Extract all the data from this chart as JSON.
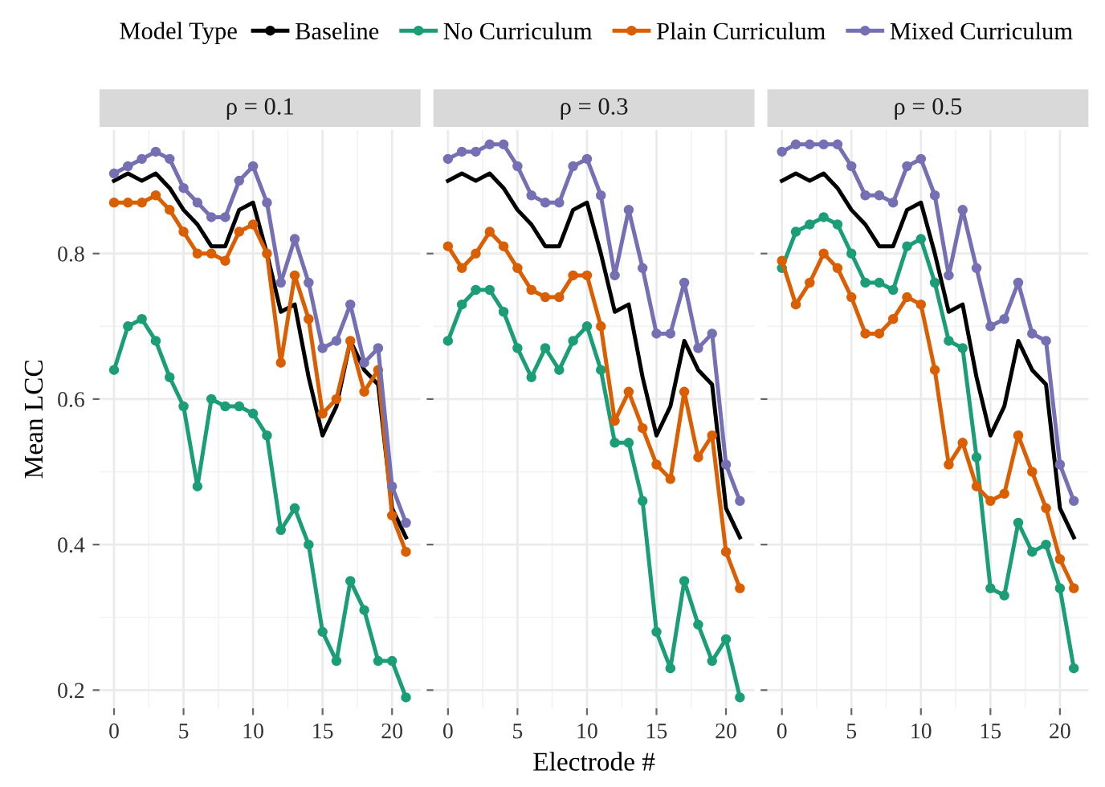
{
  "chart_data": [
    {
      "type": "line",
      "title": "ρ = 0.1",
      "ylabel": "Mean LCC",
      "legend_title": "Model Type",
      "legend": "top",
      "grid": true,
      "marker": "circle",
      "line_style": "solid",
      "tick_labels": "xy",
      "x": [
        0,
        1,
        2,
        3,
        4,
        5,
        6,
        7,
        8,
        9,
        10,
        11,
        12,
        13,
        14,
        15,
        16,
        17,
        18,
        19,
        20,
        21
      ],
      "xlim": [
        -1.05,
        22.05
      ],
      "xticks": [
        0,
        5,
        10,
        15,
        20
      ],
      "ylim": [
        0.175,
        0.97
      ],
      "yticks": [
        0.2,
        0.4,
        0.6,
        0.8
      ],
      "series": [
        {
          "name": "Baseline",
          "color": "#000000",
          "marker": "none",
          "values": [
            0.9,
            0.91,
            0.9,
            0.91,
            0.89,
            0.86,
            0.84,
            0.81,
            0.81,
            0.86,
            0.87,
            0.8,
            0.72,
            0.73,
            0.63,
            0.55,
            0.59,
            0.68,
            0.64,
            0.62,
            0.45,
            0.41
          ]
        },
        {
          "name": "No Curriculum",
          "color": "#1b9e77",
          "values": [
            0.64,
            0.7,
            0.71,
            0.68,
            0.63,
            0.59,
            0.48,
            0.6,
            0.59,
            0.59,
            0.58,
            0.55,
            0.42,
            0.45,
            0.4,
            0.28,
            0.24,
            0.35,
            0.31,
            0.24,
            0.24,
            0.19
          ]
        },
        {
          "name": "Plain Curriculum",
          "color": "#d95f02",
          "values": [
            0.87,
            0.87,
            0.87,
            0.88,
            0.86,
            0.83,
            0.8,
            0.8,
            0.79,
            0.83,
            0.84,
            0.8,
            0.65,
            0.77,
            0.71,
            0.58,
            0.6,
            0.68,
            0.61,
            0.64,
            0.44,
            0.39
          ]
        },
        {
          "name": "Mixed Curriculum",
          "color": "#7570b3",
          "values": [
            0.91,
            0.92,
            0.93,
            0.94,
            0.93,
            0.89,
            0.87,
            0.85,
            0.85,
            0.9,
            0.92,
            0.87,
            0.76,
            0.82,
            0.76,
            0.67,
            0.68,
            0.73,
            0.65,
            0.67,
            0.48,
            0.43
          ]
        }
      ]
    },
    {
      "type": "line",
      "title": "ρ = 0.3",
      "xlabel": "Electrode #",
      "grid": true,
      "marker": "circle",
      "line_style": "solid",
      "tick_labels": "x",
      "x": [
        0,
        1,
        2,
        3,
        4,
        5,
        6,
        7,
        8,
        9,
        10,
        11,
        12,
        13,
        14,
        15,
        16,
        17,
        18,
        19,
        20,
        21
      ],
      "xlim": [
        -1.05,
        22.05
      ],
      "xticks": [
        0,
        5,
        10,
        15,
        20
      ],
      "ylim": [
        0.175,
        0.97
      ],
      "yticks": [
        0.2,
        0.4,
        0.6,
        0.8
      ],
      "series": [
        {
          "name": "Baseline",
          "color": "#000000",
          "marker": "none",
          "values": [
            0.9,
            0.91,
            0.9,
            0.91,
            0.89,
            0.86,
            0.84,
            0.81,
            0.81,
            0.86,
            0.87,
            0.8,
            0.72,
            0.73,
            0.63,
            0.55,
            0.59,
            0.68,
            0.64,
            0.62,
            0.45,
            0.41
          ]
        },
        {
          "name": "No Curriculum",
          "color": "#1b9e77",
          "values": [
            0.68,
            0.73,
            0.75,
            0.75,
            0.72,
            0.67,
            0.63,
            0.67,
            0.64,
            0.68,
            0.7,
            0.64,
            0.54,
            0.54,
            0.46,
            0.28,
            0.23,
            0.35,
            0.29,
            0.24,
            0.27,
            0.19
          ]
        },
        {
          "name": "Plain Curriculum",
          "color": "#d95f02",
          "values": [
            0.81,
            0.78,
            0.8,
            0.83,
            0.81,
            0.78,
            0.75,
            0.74,
            0.74,
            0.77,
            0.77,
            0.7,
            0.57,
            0.61,
            0.56,
            0.51,
            0.49,
            0.61,
            0.52,
            0.55,
            0.39,
            0.34
          ]
        },
        {
          "name": "Mixed Curriculum",
          "color": "#7570b3",
          "values": [
            0.93,
            0.94,
            0.94,
            0.95,
            0.95,
            0.92,
            0.88,
            0.87,
            0.87,
            0.92,
            0.93,
            0.88,
            0.77,
            0.86,
            0.78,
            0.69,
            0.69,
            0.76,
            0.67,
            0.69,
            0.51,
            0.46
          ]
        }
      ]
    },
    {
      "type": "line",
      "title": "ρ = 0.5",
      "grid": true,
      "marker": "circle",
      "line_style": "solid",
      "tick_labels": "x",
      "x": [
        0,
        1,
        2,
        3,
        4,
        5,
        6,
        7,
        8,
        9,
        10,
        11,
        12,
        13,
        14,
        15,
        16,
        17,
        18,
        19,
        20,
        21
      ],
      "xlim": [
        -1.05,
        22.05
      ],
      "xticks": [
        0,
        5,
        10,
        15,
        20
      ],
      "ylim": [
        0.175,
        0.97
      ],
      "yticks": [
        0.2,
        0.4,
        0.6,
        0.8
      ],
      "series": [
        {
          "name": "Baseline",
          "color": "#000000",
          "marker": "none",
          "values": [
            0.9,
            0.91,
            0.9,
            0.91,
            0.89,
            0.86,
            0.84,
            0.81,
            0.81,
            0.86,
            0.87,
            0.8,
            0.72,
            0.73,
            0.63,
            0.55,
            0.59,
            0.68,
            0.64,
            0.62,
            0.45,
            0.41
          ]
        },
        {
          "name": "No Curriculum",
          "color": "#1b9e77",
          "values": [
            0.78,
            0.83,
            0.84,
            0.85,
            0.84,
            0.8,
            0.76,
            0.76,
            0.75,
            0.81,
            0.82,
            0.76,
            0.68,
            0.67,
            0.52,
            0.34,
            0.33,
            0.43,
            0.39,
            0.4,
            0.34,
            0.23
          ]
        },
        {
          "name": "Plain Curriculum",
          "color": "#d95f02",
          "values": [
            0.79,
            0.73,
            0.76,
            0.8,
            0.78,
            0.74,
            0.69,
            0.69,
            0.71,
            0.74,
            0.73,
            0.64,
            0.51,
            0.54,
            0.48,
            0.46,
            0.47,
            0.55,
            0.5,
            0.45,
            0.38,
            0.34
          ]
        },
        {
          "name": "Mixed Curriculum",
          "color": "#7570b3",
          "values": [
            0.94,
            0.95,
            0.95,
            0.95,
            0.95,
            0.92,
            0.88,
            0.88,
            0.87,
            0.92,
            0.93,
            0.88,
            0.77,
            0.86,
            0.78,
            0.7,
            0.71,
            0.76,
            0.69,
            0.68,
            0.51,
            0.46
          ]
        }
      ]
    }
  ]
}
